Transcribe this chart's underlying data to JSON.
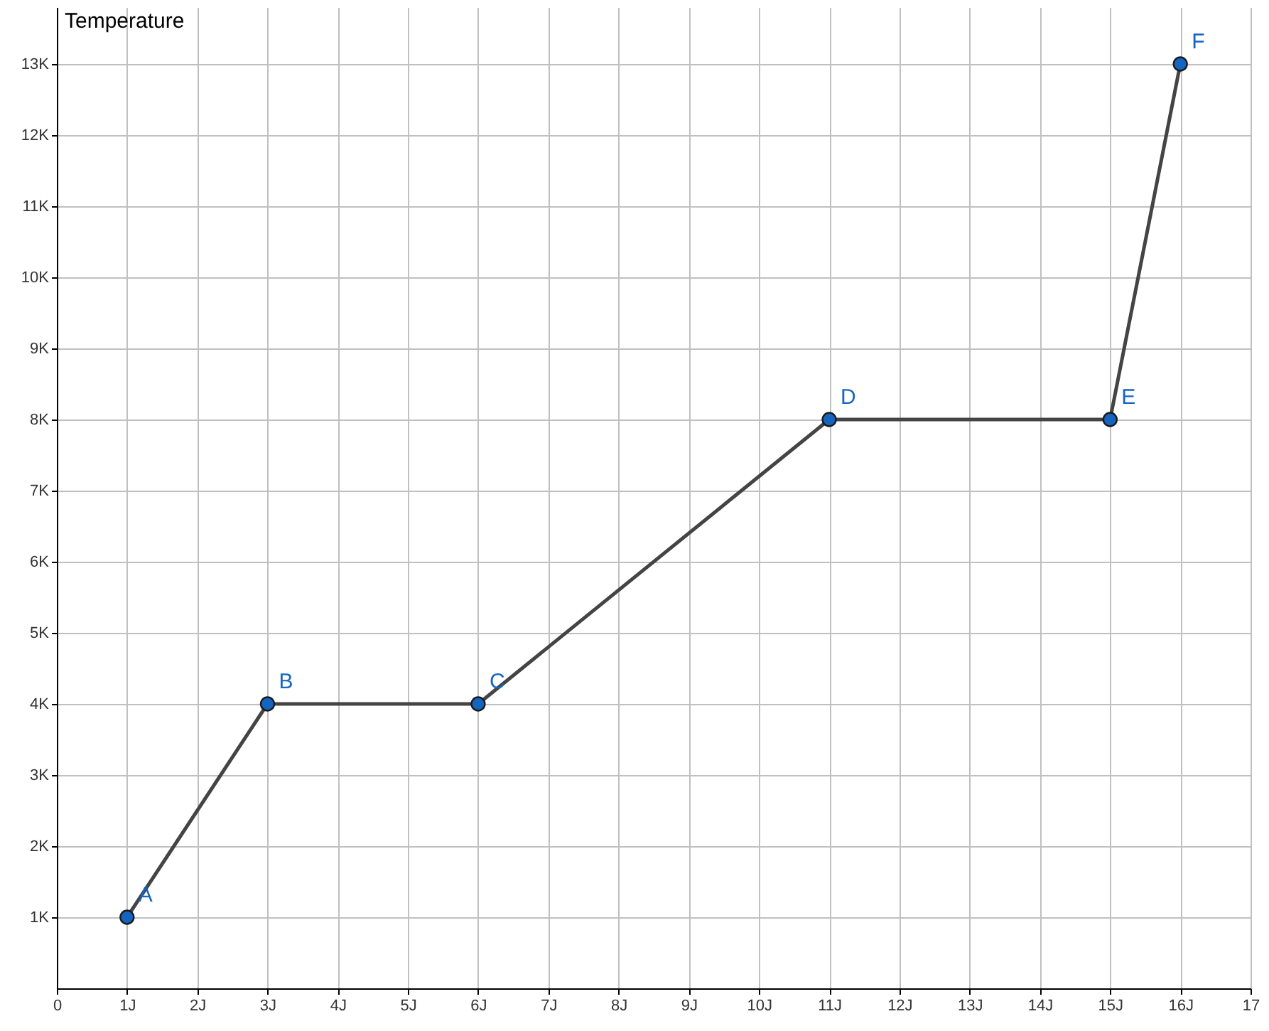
{
  "chart_data": {
    "type": "line",
    "ylabel": "Temperature",
    "x": [
      1,
      3,
      6,
      11,
      15,
      16
    ],
    "series": [
      {
        "color": "#444444",
        "values": [
          1,
          4,
          4,
          8,
          8,
          13
        ]
      }
    ],
    "marker": "circle",
    "line_style": "solid",
    "grid": true,
    "xlim": [
      0,
      17
    ],
    "ylim": [
      0,
      13.8
    ],
    "xticks": [
      0,
      {
        "value": 1,
        "label": "1J"
      },
      {
        "value": 2,
        "label": "2J"
      },
      {
        "value": 3,
        "label": "3J"
      },
      {
        "value": 4,
        "label": "4J"
      },
      {
        "value": 5,
        "label": "5J"
      },
      {
        "value": 6,
        "label": "6J"
      },
      {
        "value": 7,
        "label": "7J"
      },
      {
        "value": 8,
        "label": "8J"
      },
      {
        "value": 9,
        "label": "9J"
      },
      {
        "value": 10,
        "label": "10J"
      },
      {
        "value": 11,
        "label": "11J"
      },
      {
        "value": 12,
        "label": "12J"
      },
      {
        "value": 13,
        "label": "13J"
      },
      {
        "value": 14,
        "label": "14J"
      },
      {
        "value": 15,
        "label": "15J"
      },
      {
        "value": 16,
        "label": "16J"
      },
      17
    ],
    "yticks": [
      {
        "value": 1,
        "label": "1K"
      },
      {
        "value": 2,
        "label": "2K"
      },
      {
        "value": 3,
        "label": "3K"
      },
      {
        "value": 4,
        "label": "4K"
      },
      {
        "value": 5,
        "label": "5K"
      },
      {
        "value": 6,
        "label": "6K"
      },
      {
        "value": 7,
        "label": "7K"
      },
      {
        "value": 8,
        "label": "8K"
      },
      {
        "value": 9,
        "label": "9K"
      },
      {
        "value": 10,
        "label": "10K"
      },
      {
        "value": 11,
        "label": "11K"
      },
      {
        "value": 12,
        "label": "12K"
      },
      {
        "value": 13,
        "label": "13K"
      }
    ],
    "annotations": [
      {
        "text": "A",
        "x": 1,
        "y": 1
      },
      {
        "text": "B",
        "x": 3,
        "y": 4
      },
      {
        "text": "C",
        "x": 6,
        "y": 4
      },
      {
        "text": "D",
        "x": 11,
        "y": 8
      },
      {
        "text": "E",
        "x": 15,
        "y": 8
      },
      {
        "text": "F",
        "x": 16,
        "y": 13
      }
    ]
  }
}
